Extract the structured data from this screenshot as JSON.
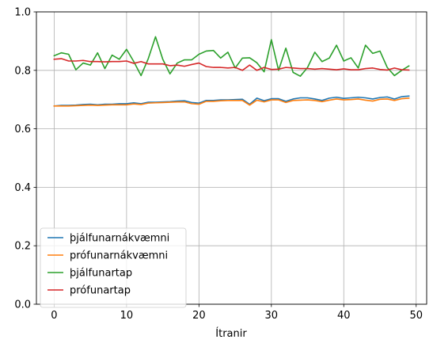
{
  "chart_data": {
    "type": "line",
    "title": "",
    "xlabel": "Ítranir",
    "ylabel": "",
    "xlim": [
      -2.45,
      51.45
    ],
    "ylim": [
      0.0,
      1.0
    ],
    "xticks": [
      0,
      10,
      20,
      30,
      40,
      50
    ],
    "yticks": [
      0.0,
      0.2,
      0.4,
      0.6,
      0.8,
      1.0
    ],
    "xtick_labels": [
      "0",
      "10",
      "20",
      "30",
      "40",
      "50"
    ],
    "ytick_labels": [
      "0.0",
      "0.2",
      "0.4",
      "0.6",
      "0.8",
      "1.0"
    ],
    "grid": true,
    "legend_position": "lower-left",
    "x": [
      0,
      1,
      2,
      3,
      4,
      5,
      6,
      7,
      8,
      9,
      10,
      11,
      12,
      13,
      14,
      15,
      16,
      17,
      18,
      19,
      20,
      21,
      22,
      23,
      24,
      25,
      26,
      27,
      28,
      29,
      30,
      31,
      32,
      33,
      34,
      35,
      36,
      37,
      38,
      39,
      40,
      41,
      42,
      43,
      44,
      45,
      46,
      47,
      48,
      49
    ],
    "series": [
      {
        "name": "þjálfunarnákvæmni",
        "color": "#1f77b4",
        "values": [
          0.678,
          0.68,
          0.68,
          0.681,
          0.683,
          0.684,
          0.682,
          0.684,
          0.684,
          0.686,
          0.686,
          0.689,
          0.686,
          0.691,
          0.691,
          0.692,
          0.693,
          0.695,
          0.696,
          0.69,
          0.688,
          0.697,
          0.697,
          0.699,
          0.699,
          0.7,
          0.701,
          0.684,
          0.705,
          0.696,
          0.703,
          0.703,
          0.694,
          0.702,
          0.706,
          0.706,
          0.702,
          0.697,
          0.705,
          0.708,
          0.704,
          0.706,
          0.708,
          0.706,
          0.702,
          0.707,
          0.709,
          0.702,
          0.71,
          0.712
        ]
      },
      {
        "name": "prófunarnákvæmni",
        "color": "#ff7f0e",
        "values": [
          0.678,
          0.678,
          0.678,
          0.679,
          0.68,
          0.681,
          0.68,
          0.681,
          0.682,
          0.682,
          0.682,
          0.685,
          0.683,
          0.688,
          0.689,
          0.69,
          0.691,
          0.692,
          0.692,
          0.686,
          0.684,
          0.694,
          0.694,
          0.696,
          0.697,
          0.697,
          0.697,
          0.681,
          0.698,
          0.692,
          0.699,
          0.699,
          0.69,
          0.697,
          0.698,
          0.699,
          0.697,
          0.693,
          0.698,
          0.702,
          0.699,
          0.7,
          0.702,
          0.698,
          0.695,
          0.701,
          0.702,
          0.697,
          0.703,
          0.705
        ]
      },
      {
        "name": "þjálfunartap",
        "color": "#2ca02c",
        "values": [
          0.85,
          0.86,
          0.855,
          0.802,
          0.825,
          0.818,
          0.86,
          0.806,
          0.852,
          0.838,
          0.872,
          0.83,
          0.782,
          0.84,
          0.915,
          0.838,
          0.788,
          0.825,
          0.836,
          0.836,
          0.855,
          0.866,
          0.868,
          0.842,
          0.862,
          0.808,
          0.842,
          0.843,
          0.826,
          0.795,
          0.905,
          0.8,
          0.876,
          0.793,
          0.78,
          0.81,
          0.862,
          0.83,
          0.842,
          0.886,
          0.832,
          0.843,
          0.808,
          0.886,
          0.858,
          0.866,
          0.81,
          0.782,
          0.8,
          0.815
        ]
      },
      {
        "name": "prófunartap",
        "color": "#d62728",
        "values": [
          0.838,
          0.84,
          0.832,
          0.832,
          0.834,
          0.83,
          0.83,
          0.829,
          0.83,
          0.83,
          0.832,
          0.824,
          0.83,
          0.822,
          0.822,
          0.822,
          0.816,
          0.818,
          0.814,
          0.82,
          0.825,
          0.813,
          0.81,
          0.81,
          0.808,
          0.81,
          0.8,
          0.818,
          0.8,
          0.81,
          0.803,
          0.804,
          0.81,
          0.808,
          0.806,
          0.806,
          0.804,
          0.806,
          0.804,
          0.802,
          0.805,
          0.802,
          0.802,
          0.806,
          0.808,
          0.803,
          0.801,
          0.808,
          0.802,
          0.801
        ]
      }
    ]
  }
}
